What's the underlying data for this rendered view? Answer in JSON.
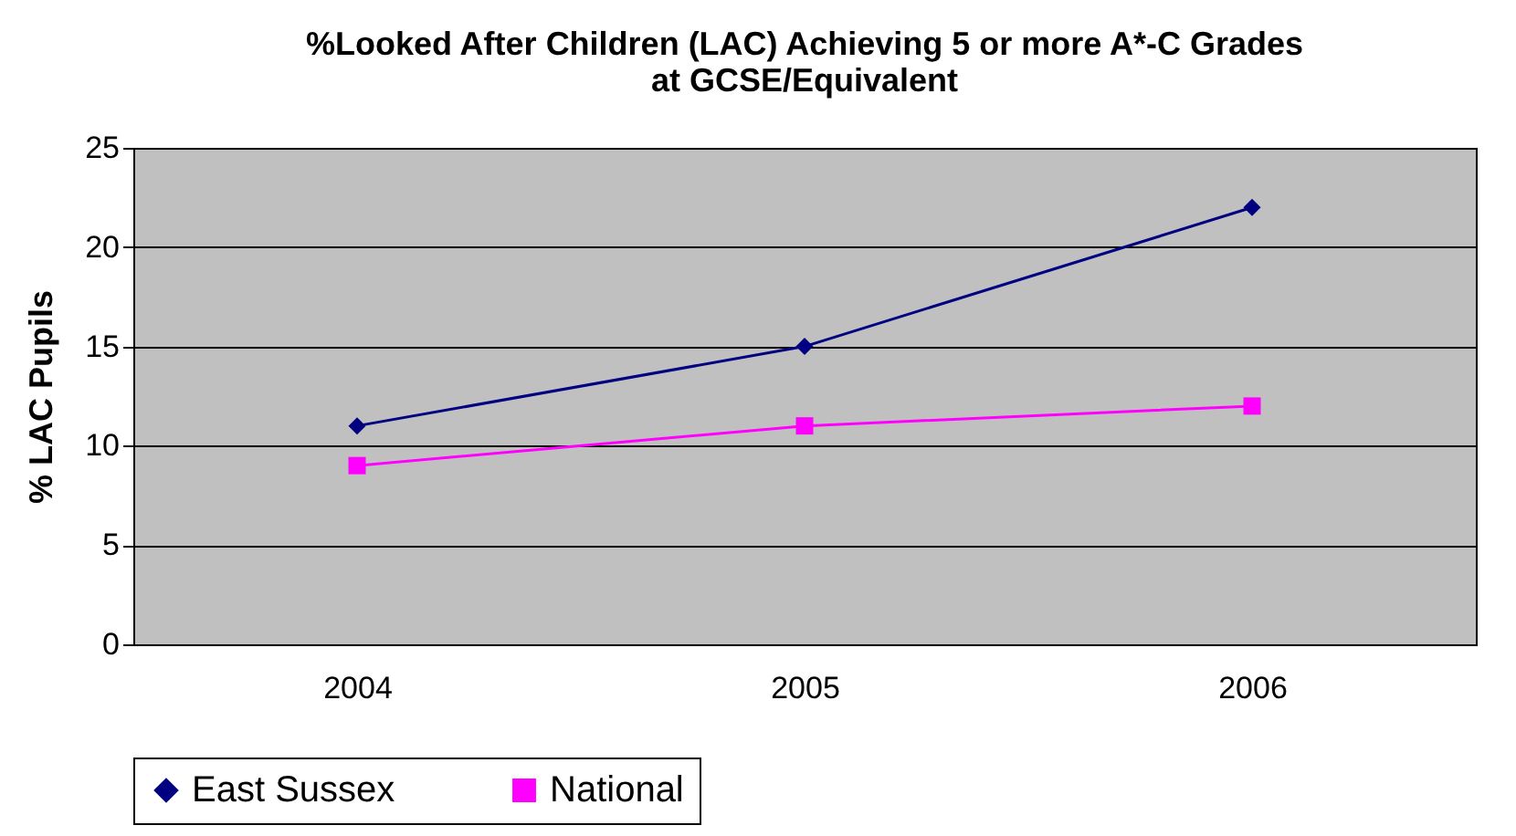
{
  "chart_data": {
    "type": "line",
    "title": "%Looked After Children (LAC) Achieving 5 or more A*-C Grades\nat GCSE/Equivalent",
    "ylabel": "% LAC Pupils",
    "categories": [
      "2004",
      "2005",
      "2006"
    ],
    "series": [
      {
        "name": "East Sussex",
        "color": "#000080",
        "marker": "diamond",
        "values": [
          11,
          15,
          22
        ]
      },
      {
        "name": "National",
        "color": "#ff00ff",
        "marker": "square",
        "values": [
          9,
          11,
          12
        ]
      }
    ],
    "ylim": [
      0,
      25
    ],
    "yticks": [
      0,
      5,
      10,
      15,
      20,
      25
    ],
    "grid": "y",
    "legend": "bottom"
  }
}
